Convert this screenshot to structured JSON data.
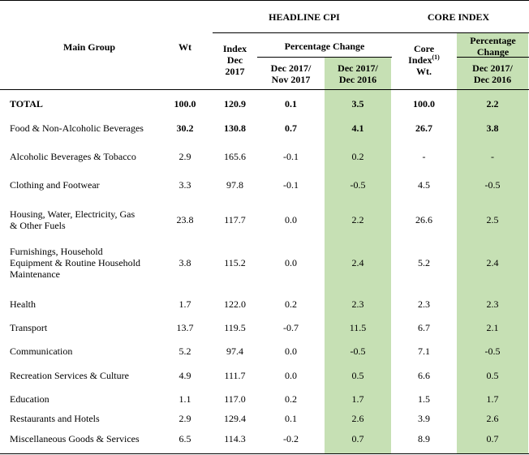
{
  "groups": {
    "headline_cpi": "HEADLINE CPI",
    "core_index": "CORE INDEX"
  },
  "columns": {
    "main_group": "Main Group",
    "wt": "Wt",
    "index_l1": "Index",
    "index_l2": "Dec",
    "index_l3": "2017",
    "pct_change": "Percentage Change",
    "mom_l1": "Dec 2017/",
    "mom_l2": "Nov 2017",
    "yoy_l1": "Dec 2017/",
    "yoy_l2": "Dec 2016",
    "core_l1": "Core",
    "core_l2": "Index",
    "core_sup": "(1)",
    "core_l3": "Wt.",
    "core_pct_l1": "Percentage",
    "core_pct_l2": "Change",
    "core_yoy_l1": "Dec 2017/",
    "core_yoy_l2": "Dec 2016"
  },
  "rows": [
    {
      "name": [
        "TOTAL"
      ],
      "wt": "100.0",
      "index": "120.9",
      "mom": "0.1",
      "yoy": "3.5",
      "core_wt": "100.0",
      "core_yoy": "2.2"
    },
    {
      "name": [
        "Food & Non-Alcoholic Beverages"
      ],
      "wt": "30.2",
      "index": "130.8",
      "mom": "0.7",
      "yoy": "4.1",
      "core_wt": "26.7",
      "core_yoy": "3.8"
    },
    {
      "name": [
        "Alcoholic Beverages & Tobacco"
      ],
      "wt": "2.9",
      "index": "165.6",
      "mom": "-0.1",
      "yoy": "0.2",
      "core_wt": "-",
      "core_yoy": "-"
    },
    {
      "name": [
        "Clothing and Footwear"
      ],
      "wt": "3.3",
      "index": "97.8",
      "mom": "-0.1",
      "yoy": "-0.5",
      "core_wt": "4.5",
      "core_yoy": "-0.5"
    },
    {
      "name": [
        "Housing, Water, Electricity, Gas",
        "& Other Fuels"
      ],
      "wt": "23.8",
      "index": "117.7",
      "mom": "0.0",
      "yoy": "2.2",
      "core_wt": "26.6",
      "core_yoy": "2.5"
    },
    {
      "name": [
        "Furnishings, Household",
        "Equipment & Routine Household",
        "Maintenance"
      ],
      "wt": "3.8",
      "index": "115.2",
      "mom": "0.0",
      "yoy": "2.4",
      "core_wt": "5.2",
      "core_yoy": "2.4"
    },
    {
      "name": [
        "Health"
      ],
      "wt": "1.7",
      "index": "122.0",
      "mom": "0.2",
      "yoy": "2.3",
      "core_wt": "2.3",
      "core_yoy": "2.3"
    },
    {
      "name": [
        "Transport"
      ],
      "wt": "13.7",
      "index": "119.5",
      "mom": "-0.7",
      "yoy": "11.5",
      "core_wt": "6.7",
      "core_yoy": "2.1"
    },
    {
      "name": [
        "Communication"
      ],
      "wt": "5.2",
      "index": "97.4",
      "mom": "0.0",
      "yoy": "-0.5",
      "core_wt": "7.1",
      "core_yoy": "-0.5"
    },
    {
      "name": [
        "Recreation Services & Culture"
      ],
      "wt": "4.9",
      "index": "111.7",
      "mom": "0.0",
      "yoy": "0.5",
      "core_wt": "6.6",
      "core_yoy": "0.5"
    },
    {
      "name": [
        "Education"
      ],
      "wt": "1.1",
      "index": "117.0",
      "mom": "0.2",
      "yoy": "1.7",
      "core_wt": "1.5",
      "core_yoy": "1.7"
    },
    {
      "name": [
        "Restaurants and Hotels"
      ],
      "wt": "2.9",
      "index": "129.4",
      "mom": "0.1",
      "yoy": "2.6",
      "core_wt": "3.9",
      "core_yoy": "2.6"
    },
    {
      "name": [
        "Miscellaneous Goods & Services"
      ],
      "wt": "6.5",
      "index": "114.3",
      "mom": "-0.2",
      "yoy": "0.7",
      "core_wt": "8.9",
      "core_yoy": "0.7"
    }
  ]
}
